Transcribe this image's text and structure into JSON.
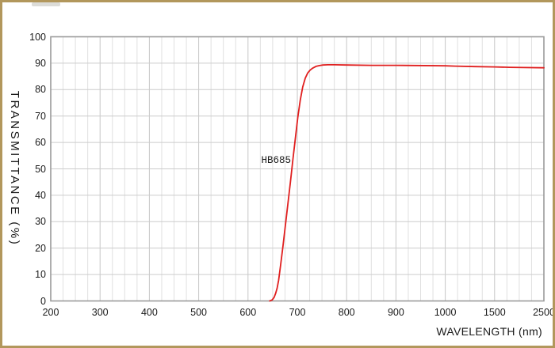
{
  "page": {
    "background": "#ffffff",
    "frame_color": "#b2975c"
  },
  "chart_data": {
    "type": "line",
    "title": "",
    "xlabel": "WAVELENGTH (nm)",
    "ylabel": "TRANSMITTANCE (%)",
    "x_ticks": [
      "200",
      "300",
      "400",
      "500",
      "600",
      "700",
      "800",
      "900",
      "1000",
      "1500",
      "2500"
    ],
    "x_tick_values": [
      200,
      300,
      400,
      500,
      600,
      700,
      800,
      900,
      1000,
      1500,
      2500
    ],
    "y_ticks": [
      "100",
      "90",
      "80",
      "70",
      "60",
      "50",
      "40",
      "30",
      "20",
      "10",
      "0"
    ],
    "y_tick_values": [
      100,
      90,
      80,
      70,
      60,
      50,
      40,
      30,
      20,
      10,
      0
    ],
    "ylim": [
      0,
      100
    ],
    "grid": "on",
    "legend": "none",
    "x_axis_scale": "piecewise-linear: equal pixel spacing between consecutive labeled ticks, 4 minor grid divisions per interval",
    "annotation": {
      "text": "HB685",
      "x_nm": 657,
      "y_pct": 53
    },
    "series": [
      {
        "name": "HB685",
        "color": "#e01f1f",
        "points": [
          [
            644,
            0
          ],
          [
            649,
            0.4
          ],
          [
            653,
            1.4
          ],
          [
            656,
            2.8
          ],
          [
            659,
            4.8
          ],
          [
            662,
            7.8
          ],
          [
            666,
            13.5
          ],
          [
            671,
            21
          ],
          [
            676,
            29
          ],
          [
            681,
            37
          ],
          [
            686,
            45
          ],
          [
            691,
            53.5
          ],
          [
            696,
            61.5
          ],
          [
            701,
            69.5
          ],
          [
            706,
            76
          ],
          [
            711,
            81
          ],
          [
            716,
            84.3
          ],
          [
            721,
            86.3
          ],
          [
            726,
            87.4
          ],
          [
            731,
            88.1
          ],
          [
            738,
            88.8
          ],
          [
            745,
            89.1
          ],
          [
            752,
            89.3
          ],
          [
            762,
            89.4
          ],
          [
            775,
            89.4
          ],
          [
            800,
            89.3
          ],
          [
            850,
            89.2
          ],
          [
            900,
            89.2
          ],
          [
            1000,
            89.0
          ],
          [
            1100,
            88.9
          ],
          [
            1300,
            88.7
          ],
          [
            1500,
            88.6
          ],
          [
            1800,
            88.45
          ],
          [
            2100,
            88.35
          ],
          [
            2500,
            88.25
          ]
        ]
      }
    ]
  }
}
